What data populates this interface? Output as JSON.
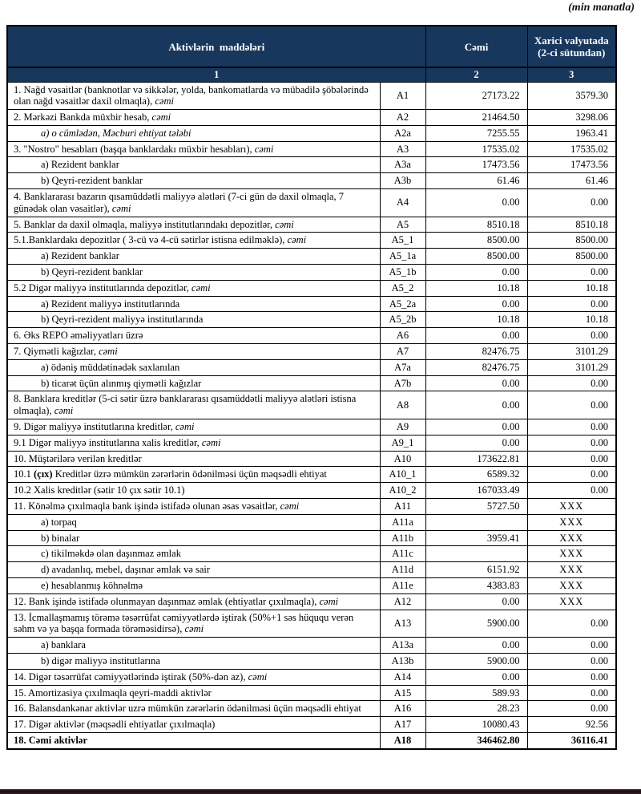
{
  "note": "(min manatla)",
  "colors": {
    "header_bg": "#17375d",
    "header_text": "#ffffff",
    "border": "#000000",
    "bottom_bar": "#23090f"
  },
  "table": {
    "header": {
      "col1": "Aktivlərin  maddələri",
      "col2": "Cəmi",
      "col3": "Xarici valyutada (2-ci sütundan)",
      "num1": "1",
      "num2": "2",
      "num3": "3"
    },
    "rows": [
      {
        "parts": [
          {
            "t": "1. Nağd vəsaitlər (banknotlar və sikkələr, yolda, bankomatlarda və mübadilə şöbələrində olan nağd vəsaitlər daxil olmaqla), ",
            "s": "n"
          },
          {
            "t": "cəmi",
            "s": "i"
          }
        ],
        "code": "A1",
        "cemi": "27173.22",
        "xarici": "3579.30",
        "indent": false,
        "bold": false
      },
      {
        "parts": [
          {
            "t": "2. Mərkəzi Bankda müxbir hesab, ",
            "s": "n"
          },
          {
            "t": "cəmi",
            "s": "i"
          }
        ],
        "code": "A2",
        "cemi": "21464.50",
        "xarici": "3298.06",
        "indent": false,
        "bold": false
      },
      {
        "parts": [
          {
            "t": "a) o cümlədən, Məcburi ehtiyat tələbi",
            "s": "i"
          }
        ],
        "code": "A2a",
        "cemi": "7255.55",
        "xarici": "1963.41",
        "indent": true,
        "bold": false
      },
      {
        "parts": [
          {
            "t": "3. \"Nostro\" hesabları (başqa banklardakı müxbir hesabları), ",
            "s": "n"
          },
          {
            "t": "cəmi",
            "s": "i"
          }
        ],
        "code": "A3",
        "cemi": "17535.02",
        "xarici": "17535.02",
        "indent": false,
        "bold": false
      },
      {
        "parts": [
          {
            "t": "a) Rezident banklar",
            "s": "n"
          }
        ],
        "code": "A3a",
        "cemi": "17473.56",
        "xarici": "17473.56",
        "indent": true,
        "bold": false
      },
      {
        "parts": [
          {
            "t": "b) Qeyri-rezident banklar",
            "s": "n"
          }
        ],
        "code": "A3b",
        "cemi": "61.46",
        "xarici": "61.46",
        "indent": true,
        "bold": false
      },
      {
        "parts": [
          {
            "t": "4. Banklararası bazarın qısamüddətli maliyyə alətləri (7-ci gün də daxil olmaqla, 7 günədək olan vəsaitlər), ",
            "s": "n"
          },
          {
            "t": "cəmi",
            "s": "i"
          }
        ],
        "code": "A4",
        "cemi": "0.00",
        "xarici": "0.00",
        "indent": false,
        "bold": false
      },
      {
        "parts": [
          {
            "t": "5. Banklar da daxil olmaqla, maliyyə institutlarındakı depozitlər, ",
            "s": "n"
          },
          {
            "t": "cəmi",
            "s": "i"
          }
        ],
        "code": "A5",
        "cemi": "8510.18",
        "xarici": "8510.18",
        "indent": false,
        "bold": false
      },
      {
        "parts": [
          {
            "t": "5.1.Banklardakı depozitlər ( 3-cü və 4-cü sətirlər istisna edilməklə), ",
            "s": "n"
          },
          {
            "t": "cəmi",
            "s": "i"
          }
        ],
        "code": "A5_1",
        "cemi": "8500.00",
        "xarici": "8500.00",
        "indent": false,
        "bold": false
      },
      {
        "parts": [
          {
            "t": "a) Rezident banklar",
            "s": "n"
          }
        ],
        "code": "A5_1a",
        "cemi": "8500.00",
        "xarici": "8500.00",
        "indent": true,
        "bold": false
      },
      {
        "parts": [
          {
            "t": "b) Qeyri-rezident banklar",
            "s": "n"
          }
        ],
        "code": "A5_1b",
        "cemi": "0.00",
        "xarici": "0.00",
        "indent": true,
        "bold": false
      },
      {
        "parts": [
          {
            "t": "5.2 Digər maliyyə institutlarında depozitlər, ",
            "s": "n"
          },
          {
            "t": "cəmi",
            "s": "i"
          }
        ],
        "code": "A5_2",
        "cemi": "10.18",
        "xarici": "10.18",
        "indent": false,
        "bold": false
      },
      {
        "parts": [
          {
            "t": "a) Rezident maliyyə institutlarında",
            "s": "n"
          }
        ],
        "code": "A5_2a",
        "cemi": "0.00",
        "xarici": "0.00",
        "indent": true,
        "bold": false
      },
      {
        "parts": [
          {
            "t": "b) Qeyri-rezident maliyyə institutlarında",
            "s": "n"
          }
        ],
        "code": "A5_2b",
        "cemi": "10.18",
        "xarici": "10.18",
        "indent": true,
        "bold": false
      },
      {
        "parts": [
          {
            "t": "6. Əks REPO əməliyyatları üzrə",
            "s": "n"
          }
        ],
        "code": "A6",
        "cemi": "0.00",
        "xarici": "0.00",
        "indent": false,
        "bold": false
      },
      {
        "parts": [
          {
            "t": "7. Qiymətli kağızlar, ",
            "s": "n"
          },
          {
            "t": "cəmi",
            "s": "i"
          }
        ],
        "code": "A7",
        "cemi": "82476.75",
        "xarici": "3101.29",
        "indent": false,
        "bold": false
      },
      {
        "parts": [
          {
            "t": "a) ödəniş müddətinədək saxlanılan",
            "s": "n"
          }
        ],
        "code": "A7a",
        "cemi": "82476.75",
        "xarici": "3101.29",
        "indent": true,
        "bold": false
      },
      {
        "parts": [
          {
            "t": "b) ticarət üçün alınmış qiymətli kağızlar",
            "s": "n"
          }
        ],
        "code": "A7b",
        "cemi": "0.00",
        "xarici": "0.00",
        "indent": true,
        "bold": false
      },
      {
        "parts": [
          {
            "t": "8. Banklara kreditlər (5-ci sətir üzrə banklararası qısamüddətli maliyyə alətləri istisna olmaqla), ",
            "s": "n"
          },
          {
            "t": "cəmi",
            "s": "i"
          }
        ],
        "code": "A8",
        "cemi": "0.00",
        "xarici": "0.00",
        "indent": false,
        "bold": false
      },
      {
        "parts": [
          {
            "t": "9. Digər maliyyə institutlarına kreditlər, ",
            "s": "n"
          },
          {
            "t": "cəmi",
            "s": "i"
          }
        ],
        "code": "A9",
        "cemi": "0.00",
        "xarici": "0.00",
        "indent": false,
        "bold": false
      },
      {
        "parts": [
          {
            "t": "9.1 Digər maliyyə institutlarına xalis kreditlər, ",
            "s": "n"
          },
          {
            "t": "cəmi",
            "s": "i"
          }
        ],
        "code": "A9_1",
        "cemi": "0.00",
        "xarici": "0.00",
        "indent": false,
        "bold": false
      },
      {
        "parts": [
          {
            "t": "10. Müştərilərə verilən kreditlər",
            "s": "n"
          }
        ],
        "code": "A10",
        "cemi": "173622.81",
        "xarici": "0.00",
        "indent": false,
        "bold": false
      },
      {
        "parts": [
          {
            "t": "10.1 ",
            "s": "n"
          },
          {
            "t": "(çıx)",
            "s": "b"
          },
          {
            "t": " Kreditlər üzrə mümkün zərərlərin ödənilməsi üçün məqsədli ehtiyat",
            "s": "n"
          }
        ],
        "code": "A10_1",
        "cemi": "6589.32",
        "xarici": "0.00",
        "indent": false,
        "bold": false
      },
      {
        "parts": [
          {
            "t": "10.2 Xalis kreditlər (sətir 10 çıx sətir 10.1)",
            "s": "n"
          }
        ],
        "code": "A10_2",
        "cemi": "167033.49",
        "xarici": "0.00",
        "indent": false,
        "bold": false
      },
      {
        "parts": [
          {
            "t": "11. Könəlmə çıxılmaqla bank işində istifadə olunan əsas vəsaitlər, ",
            "s": "n"
          },
          {
            "t": "cəmi",
            "s": "i"
          }
        ],
        "code": "A11",
        "cemi": "5727.50",
        "xarici": "XXX",
        "indent": false,
        "bold": false
      },
      {
        "parts": [
          {
            "t": "a) torpaq",
            "s": "n"
          }
        ],
        "code": "A11a",
        "cemi": "",
        "xarici": "XXX",
        "indent": true,
        "bold": false
      },
      {
        "parts": [
          {
            "t": "b) binalar",
            "s": "n"
          }
        ],
        "code": "A11b",
        "cemi": "3959.41",
        "xarici": "XXX",
        "indent": true,
        "bold": false
      },
      {
        "parts": [
          {
            "t": "c) tikilməkdə olan daşınmaz əmlak",
            "s": "n"
          }
        ],
        "code": "A11c",
        "cemi": "",
        "xarici": "XXX",
        "indent": true,
        "bold": false
      },
      {
        "parts": [
          {
            "t": "d) avadanlıq, mebel, daşınar əmlak və sair",
            "s": "n"
          }
        ],
        "code": "A11d",
        "cemi": "6151.92",
        "xarici": "XXX",
        "indent": true,
        "bold": false
      },
      {
        "parts": [
          {
            "t": "e) hesablanmış köhnəlmə",
            "s": "n"
          }
        ],
        "code": "A11e",
        "cemi": "4383.83",
        "xarici": "XXX",
        "indent": true,
        "bold": false
      },
      {
        "parts": [
          {
            "t": "12. Bank işində istifadə olunmayan daşınmaz əmlak (ehtiyatlar çıxılmaqla), ",
            "s": "n"
          },
          {
            "t": "cəmi",
            "s": "i"
          }
        ],
        "code": "A12",
        "cemi": "0.00",
        "xarici": "XXX",
        "indent": false,
        "bold": false
      },
      {
        "parts": [
          {
            "t": "13. İcmallaşmamış törəmə təsərrüfat cəmiyyətlərdə iştirak (50%+1 səs hüququ verən səhm və ya başqa formada törəməsidirsə), ",
            "s": "n"
          },
          {
            "t": "cəmi",
            "s": "i"
          }
        ],
        "code": "A13",
        "cemi": "5900.00",
        "xarici": "0.00",
        "indent": false,
        "bold": false
      },
      {
        "parts": [
          {
            "t": "a) banklara",
            "s": "n"
          }
        ],
        "code": "A13a",
        "cemi": "0.00",
        "xarici": "0.00",
        "indent": true,
        "bold": false
      },
      {
        "parts": [
          {
            "t": "b) digər maliyyə institutlarına",
            "s": "n"
          }
        ],
        "code": "A13b",
        "cemi": "5900.00",
        "xarici": "0.00",
        "indent": true,
        "bold": false
      },
      {
        "parts": [
          {
            "t": "14. Digər təsərrüfat cəmiyyətlərində iştirak (50%-dən az), ",
            "s": "n"
          },
          {
            "t": "cəmi",
            "s": "i"
          }
        ],
        "code": "A14",
        "cemi": "0.00",
        "xarici": "0.00",
        "indent": false,
        "bold": false
      },
      {
        "parts": [
          {
            "t": "15. Amortizasiya çıxılmaqla qeyri-maddi aktivlər",
            "s": "n"
          }
        ],
        "code": "A15",
        "cemi": "589.93",
        "xarici": "0.00",
        "indent": false,
        "bold": false
      },
      {
        "parts": [
          {
            "t": "16. Balansdankənar aktivlər uzrə mümkün zərərlərin ödənilməsi üçün məqsədli ehtiyat",
            "s": "n"
          }
        ],
        "code": "A16",
        "cemi": "28.23",
        "xarici": "0.00",
        "indent": false,
        "bold": false
      },
      {
        "parts": [
          {
            "t": "17. Digər aktivlər (məqsədli ehtiyatlar çıxılmaqla)",
            "s": "n"
          }
        ],
        "code": "A17",
        "cemi": "10080.43",
        "xarici": "92.56",
        "indent": false,
        "bold": false
      },
      {
        "parts": [
          {
            "t": "18. Cəmi aktivlər",
            "s": "n"
          }
        ],
        "code": "A18",
        "cemi": "346462.80",
        "xarici": "36116.41",
        "indent": false,
        "bold": true
      }
    ]
  }
}
